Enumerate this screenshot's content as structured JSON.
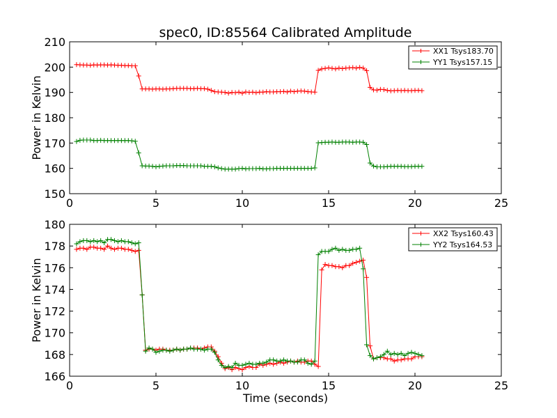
{
  "chart_data": [
    {
      "type": "line",
      "title": "spec0, ID:85564 Calibrated Amplitude",
      "xlabel": "",
      "ylabel": "Power in Kelvin",
      "xlim": [
        0,
        25
      ],
      "ylim": [
        150,
        210
      ],
      "xticks": [
        "0",
        "5",
        "10",
        "15",
        "20",
        "25"
      ],
      "yticks": [
        "150",
        "160",
        "170",
        "180",
        "190",
        "200",
        "210"
      ],
      "grid": false,
      "legend": "top-right",
      "x": [
        0.4,
        0.6,
        0.8,
        1.0,
        1.2,
        1.4,
        1.6,
        1.8,
        2.0,
        2.2,
        2.4,
        2.6,
        2.8,
        3.0,
        3.2,
        3.4,
        3.6,
        3.8,
        4.0,
        4.2,
        4.4,
        4.6,
        4.8,
        5.0,
        5.2,
        5.4,
        5.6,
        5.8,
        6.0,
        6.2,
        6.4,
        6.6,
        6.8,
        7.0,
        7.2,
        7.4,
        7.6,
        7.8,
        8.0,
        8.2,
        8.4,
        8.6,
        8.8,
        9.0,
        9.2,
        9.4,
        9.6,
        9.8,
        10.0,
        10.2,
        10.4,
        10.6,
        10.8,
        11.0,
        11.2,
        11.4,
        11.6,
        11.8,
        12.0,
        12.2,
        12.4,
        12.6,
        12.8,
        13.0,
        13.2,
        13.4,
        13.6,
        13.8,
        14.0,
        14.2,
        14.4,
        14.6,
        14.8,
        15.0,
        15.2,
        15.4,
        15.6,
        15.8,
        16.0,
        16.2,
        16.4,
        16.6,
        16.8,
        17.0,
        17.2,
        17.4,
        17.6,
        17.8,
        18.0,
        18.2,
        18.4,
        18.6,
        18.8,
        19.0,
        19.2,
        19.4,
        19.6,
        19.8,
        20.0,
        20.2,
        20.4
      ],
      "series": [
        {
          "name": "XX1 Tsys183.70",
          "color": "#ff0000",
          "values": [
            201.0,
            200.9,
            200.8,
            200.8,
            200.7,
            200.9,
            200.8,
            200.9,
            200.9,
            200.8,
            200.9,
            200.8,
            200.7,
            200.7,
            200.6,
            200.6,
            200.5,
            200.5,
            196.5,
            191.4,
            191.4,
            191.4,
            191.3,
            191.4,
            191.4,
            191.3,
            191.4,
            191.4,
            191.5,
            191.6,
            191.6,
            191.6,
            191.6,
            191.5,
            191.5,
            191.6,
            191.5,
            191.5,
            191.3,
            190.8,
            190.3,
            190.2,
            190.1,
            190.0,
            189.7,
            190.0,
            189.9,
            190.1,
            189.7,
            190.2,
            190.0,
            190.1,
            189.9,
            190.1,
            190.1,
            190.3,
            190.2,
            190.2,
            190.3,
            190.3,
            190.4,
            190.2,
            190.5,
            190.3,
            190.5,
            190.6,
            190.5,
            190.3,
            190.2,
            190.1,
            198.7,
            199.3,
            199.5,
            199.7,
            199.5,
            199.3,
            199.6,
            199.4,
            199.6,
            199.7,
            199.8,
            199.6,
            199.9,
            199.6,
            198.6,
            192.0,
            191.0,
            190.9,
            191.2,
            191.1,
            190.8,
            190.6,
            190.7,
            190.8,
            190.7,
            190.8,
            190.7,
            190.7,
            190.8,
            190.8,
            190.7
          ]
        },
        {
          "name": "YY1 Tsys157.15",
          "color": "#008000",
          "values": [
            170.6,
            171.1,
            171.2,
            171.2,
            171.2,
            171.0,
            171.0,
            171.1,
            171.0,
            171.0,
            171.0,
            171.0,
            171.0,
            171.0,
            171.0,
            171.0,
            170.9,
            170.7,
            166.1,
            161.0,
            160.9,
            160.9,
            160.8,
            160.6,
            160.8,
            160.9,
            161.0,
            161.0,
            161.0,
            161.1,
            161.1,
            161.1,
            161.0,
            161.0,
            161.0,
            161.0,
            161.0,
            160.8,
            160.8,
            160.8,
            160.6,
            160.2,
            159.9,
            159.7,
            159.7,
            159.7,
            159.7,
            159.9,
            160.0,
            159.8,
            159.9,
            159.9,
            159.9,
            160.0,
            159.8,
            159.8,
            159.9,
            159.9,
            160.0,
            160.0,
            160.0,
            160.0,
            160.0,
            160.0,
            160.0,
            160.0,
            160.0,
            160.0,
            160.0,
            160.2,
            170.1,
            170.2,
            170.3,
            170.3,
            170.4,
            170.3,
            170.3,
            170.4,
            170.4,
            170.4,
            170.3,
            170.4,
            170.4,
            170.3,
            169.4,
            162.1,
            160.9,
            160.6,
            160.6,
            160.6,
            160.7,
            160.8,
            160.8,
            160.8,
            160.8,
            160.7,
            160.7,
            160.7,
            160.8,
            160.8,
            160.8
          ]
        }
      ]
    },
    {
      "type": "line",
      "title": "",
      "xlabel": "Time (seconds)",
      "ylabel": "Power in Kelvin",
      "xlim": [
        0,
        25
      ],
      "ylim": [
        166,
        180
      ],
      "xticks": [
        "0",
        "5",
        "10",
        "15",
        "20",
        "25"
      ],
      "yticks": [
        "166",
        "168",
        "170",
        "172",
        "174",
        "176",
        "178",
        "180"
      ],
      "grid": false,
      "legend": "top-right",
      "x": [
        0.4,
        0.6,
        0.8,
        1.0,
        1.2,
        1.4,
        1.6,
        1.8,
        2.0,
        2.2,
        2.4,
        2.6,
        2.8,
        3.0,
        3.2,
        3.4,
        3.6,
        3.8,
        4.0,
        4.2,
        4.4,
        4.6,
        4.8,
        5.0,
        5.2,
        5.4,
        5.6,
        5.8,
        6.0,
        6.2,
        6.4,
        6.6,
        6.8,
        7.0,
        7.2,
        7.4,
        7.6,
        7.8,
        8.0,
        8.2,
        8.4,
        8.6,
        8.8,
        9.0,
        9.2,
        9.4,
        9.6,
        9.8,
        10.0,
        10.2,
        10.4,
        10.6,
        10.8,
        11.0,
        11.2,
        11.4,
        11.6,
        11.8,
        12.0,
        12.2,
        12.4,
        12.6,
        12.8,
        13.0,
        13.2,
        13.4,
        13.6,
        13.8,
        14.0,
        14.2,
        14.4,
        14.6,
        14.8,
        15.0,
        15.2,
        15.4,
        15.6,
        15.8,
        16.0,
        16.2,
        16.4,
        16.6,
        16.8,
        17.0,
        17.2,
        17.4,
        17.6,
        17.8,
        18.0,
        18.2,
        18.4,
        18.6,
        18.8,
        19.0,
        19.2,
        19.4,
        19.6,
        19.8,
        20.0,
        20.2,
        20.4
      ],
      "series": [
        {
          "name": "XX2 Tsys160.43",
          "color": "#ff0000",
          "values": [
            177.7,
            177.8,
            177.8,
            177.7,
            177.9,
            177.9,
            177.8,
            177.8,
            177.7,
            178.0,
            177.8,
            177.7,
            177.8,
            177.8,
            177.7,
            177.7,
            177.6,
            177.5,
            177.6,
            173.5,
            168.4,
            168.5,
            168.5,
            168.4,
            168.5,
            168.5,
            168.4,
            168.4,
            168.4,
            168.5,
            168.4,
            168.5,
            168.5,
            168.6,
            168.6,
            168.6,
            168.5,
            168.6,
            168.7,
            168.7,
            168.3,
            167.8,
            167.2,
            166.7,
            166.8,
            166.6,
            166.8,
            166.7,
            166.6,
            166.8,
            166.9,
            166.8,
            166.8,
            167.1,
            167.0,
            167.1,
            167.2,
            167.1,
            167.2,
            167.3,
            167.2,
            167.3,
            167.4,
            167.3,
            167.4,
            167.3,
            167.3,
            167.4,
            167.4,
            167.1,
            166.9,
            175.8,
            176.3,
            176.2,
            176.2,
            176.1,
            176.1,
            176.0,
            176.2,
            176.2,
            176.4,
            176.5,
            176.6,
            176.7,
            175.1,
            168.8,
            167.6,
            167.7,
            167.7,
            167.7,
            167.6,
            167.6,
            167.4,
            167.5,
            167.5,
            167.6,
            167.6,
            167.6,
            167.8,
            167.8,
            167.8
          ]
        },
        {
          "name": "YY2 Tsys164.53",
          "color": "#008000",
          "values": [
            178.2,
            178.4,
            178.5,
            178.5,
            178.4,
            178.5,
            178.4,
            178.5,
            178.3,
            178.6,
            178.6,
            178.5,
            178.4,
            178.5,
            178.4,
            178.4,
            178.3,
            178.2,
            178.3,
            173.5,
            168.3,
            168.6,
            168.5,
            168.2,
            168.3,
            168.4,
            168.4,
            168.3,
            168.4,
            168.5,
            168.4,
            168.5,
            168.5,
            168.6,
            168.5,
            168.5,
            168.5,
            168.4,
            168.5,
            168.5,
            168.2,
            167.5,
            167.0,
            166.8,
            166.9,
            166.8,
            167.2,
            167.0,
            167.0,
            167.1,
            167.2,
            167.1,
            167.1,
            167.2,
            167.2,
            167.3,
            167.5,
            167.5,
            167.4,
            167.4,
            167.5,
            167.4,
            167.4,
            167.3,
            167.3,
            167.5,
            167.5,
            167.2,
            167.1,
            167.4,
            177.2,
            177.5,
            177.5,
            177.5,
            177.7,
            177.8,
            177.6,
            177.7,
            177.6,
            177.6,
            177.7,
            177.7,
            177.8,
            175.9,
            168.9,
            167.9,
            167.6,
            167.7,
            167.8,
            168.0,
            168.3,
            168.0,
            168.1,
            168.0,
            168.1,
            167.9,
            168.1,
            168.2,
            168.1,
            168.0,
            167.9
          ]
        }
      ]
    }
  ]
}
